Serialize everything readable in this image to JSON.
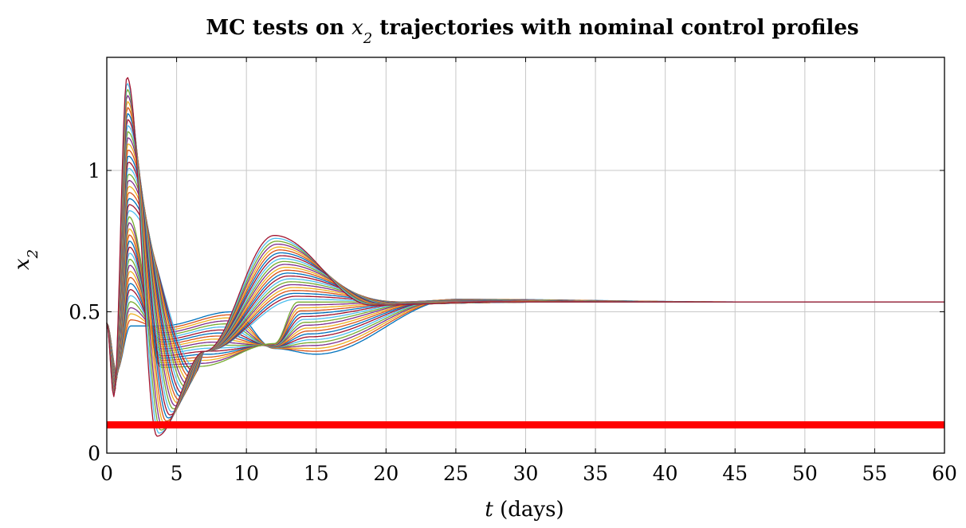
{
  "chart_data": {
    "type": "line",
    "title": {
      "prefix": "MC tests on ",
      "math": "x",
      "sub": "2",
      "suffix": " trajectories with nominal control profiles"
    },
    "xlabel": {
      "math": "t",
      "text": " (days)"
    },
    "ylabel": {
      "math": "x",
      "sub": "2"
    },
    "xlim": [
      0,
      60
    ],
    "ylim": [
      0,
      1.4
    ],
    "xticks": [
      0,
      5,
      10,
      15,
      20,
      25,
      30,
      35,
      40,
      45,
      50,
      55,
      60
    ],
    "xtick_labels": [
      "0",
      "5",
      "10",
      "15",
      "20",
      "25",
      "30",
      "35",
      "40",
      "45",
      "50",
      "55",
      "60"
    ],
    "yticks": [
      0,
      0.5,
      1
    ],
    "ytick_labels": [
      "0",
      "0.5",
      "1"
    ],
    "grid": true,
    "legend": "none",
    "steady_state": 0.535,
    "threshold": {
      "y": 0.1,
      "color": "#ff0000"
    },
    "series_colors": [
      "#0072BD",
      "#D95319",
      "#EDB120",
      "#7E2F8E",
      "#77AC30",
      "#4DBEEE",
      "#A2142F"
    ],
    "series_envelope": {
      "count": 42,
      "initial_value": 0.46,
      "first_peak_range": [
        0.45,
        1.33
      ],
      "first_peak_time": 1.5,
      "trough_range": [
        0.06,
        0.5
      ],
      "trough_time_range": [
        3.6,
        9
      ],
      "crossing_point": {
        "x": 7,
        "y": 0.36
      },
      "second_peak_range": [
        0.35,
        0.77
      ],
      "second_peak_time_range": [
        12,
        15
      ],
      "settling_time_range": [
        22,
        40
      ]
    }
  }
}
